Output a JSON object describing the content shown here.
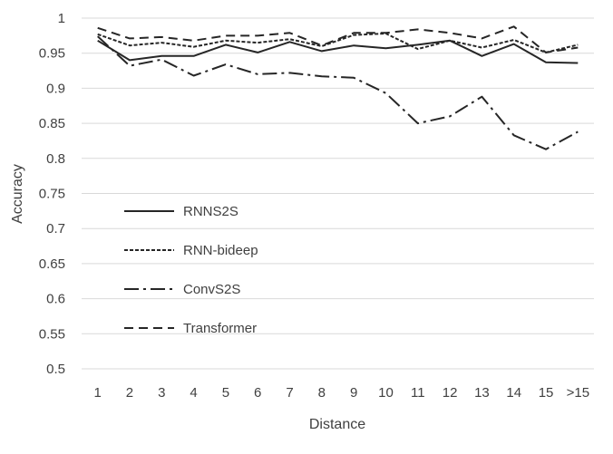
{
  "chart_data": {
    "type": "line",
    "title": "",
    "xlabel": "Distance",
    "ylabel": "Accuracy",
    "categories": [
      "1",
      "2",
      "3",
      "4",
      "5",
      "6",
      "7",
      "8",
      "9",
      "10",
      "11",
      "12",
      "13",
      "14",
      "15",
      ">15"
    ],
    "ylim": [
      0.5,
      1
    ],
    "yticks": [
      "0.5",
      "0.55",
      "0.6",
      "0.65",
      "0.7",
      "0.75",
      "0.8",
      "0.85",
      "0.9",
      "0.95",
      "1"
    ],
    "grid": "horizontal",
    "legend_position": "lower-left",
    "series": [
      {
        "name": "RNNS2S",
        "style": "solid",
        "values": [
          0.968,
          0.94,
          0.946,
          0.946,
          0.962,
          0.951,
          0.966,
          0.953,
          0.961,
          0.957,
          0.962,
          0.968,
          0.946,
          0.963,
          0.937,
          0.936
        ]
      },
      {
        "name": "RNN-bideep",
        "style": "dotted",
        "values": [
          0.977,
          0.961,
          0.965,
          0.959,
          0.968,
          0.965,
          0.97,
          0.96,
          0.976,
          0.978,
          0.956,
          0.968,
          0.958,
          0.969,
          0.951,
          0.962
        ]
      },
      {
        "name": "ConvS2S",
        "style": "dashdot",
        "values": [
          0.974,
          0.932,
          0.941,
          0.918,
          0.934,
          0.92,
          0.922,
          0.917,
          0.915,
          0.893,
          0.85,
          0.86,
          0.888,
          0.833,
          0.813,
          0.838
        ]
      },
      {
        "name": "Transformer",
        "style": "dashed",
        "values": [
          0.986,
          0.971,
          0.973,
          0.968,
          0.975,
          0.975,
          0.979,
          0.961,
          0.979,
          0.979,
          0.984,
          0.979,
          0.971,
          0.988,
          0.951,
          0.958
        ]
      }
    ],
    "colors": {
      "line": "#262626",
      "grid": "#d9d9d9",
      "text": "#404040"
    }
  }
}
